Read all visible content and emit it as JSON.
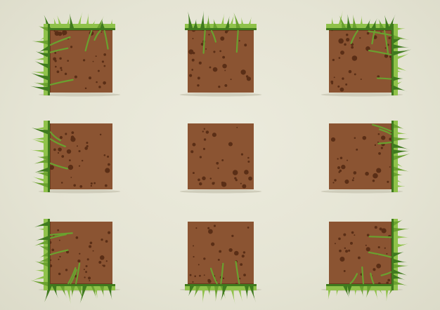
{
  "sheet": {
    "description_visible_text": "",
    "tiles": [
      {
        "id": "top-left",
        "grass": [
          "top",
          "left"
        ]
      },
      {
        "id": "top-center",
        "grass": [
          "top"
        ]
      },
      {
        "id": "top-right",
        "grass": [
          "top",
          "right"
        ]
      },
      {
        "id": "middle-left",
        "grass": [
          "left"
        ]
      },
      {
        "id": "middle-center",
        "grass": []
      },
      {
        "id": "middle-right",
        "grass": [
          "right"
        ]
      },
      {
        "id": "bottom-left",
        "grass": [
          "bottom",
          "left"
        ]
      },
      {
        "id": "bottom-center",
        "grass": [
          "bottom"
        ]
      },
      {
        "id": "bottom-right",
        "grass": [
          "bottom",
          "right"
        ]
      }
    ]
  },
  "colors": {
    "background": "#e8e7d8",
    "dirt": "#8b5432",
    "dirt_dark": "#6a3a1e",
    "dirt_spot": "#5a2e16",
    "grass_light": "#8fc24a",
    "grass_mid": "#6aa12f",
    "grass_dark": "#3f7a1e",
    "shadow": "#cfcdbb"
  }
}
